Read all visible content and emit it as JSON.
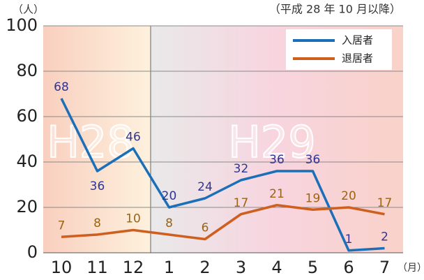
{
  "chart_data": {
    "type": "line",
    "y_unit": "（人）",
    "subtitle": "（平成 28 年 10 月以降）",
    "x_unit": "（月）",
    "era_labels": [
      "H28",
      "H29"
    ],
    "categories": [
      "10",
      "11",
      "12",
      "1",
      "2",
      "3",
      "4",
      "5",
      "6",
      "7"
    ],
    "series": [
      {
        "name": "入居者",
        "color": "#1b6fb8",
        "label_color": "#2f3592",
        "values": [
          68,
          36,
          46,
          20,
          24,
          32,
          36,
          36,
          1,
          2
        ]
      },
      {
        "name": "退居者",
        "color": "#cf5f1f",
        "label_color": "#9a6414",
        "values": [
          7,
          8,
          10,
          8,
          6,
          17,
          21,
          19,
          20,
          17
        ]
      }
    ],
    "ylim": [
      0,
      100
    ],
    "yticks": [
      0,
      20,
      40,
      60,
      80,
      100
    ],
    "grid": true,
    "legend": "top-right"
  }
}
